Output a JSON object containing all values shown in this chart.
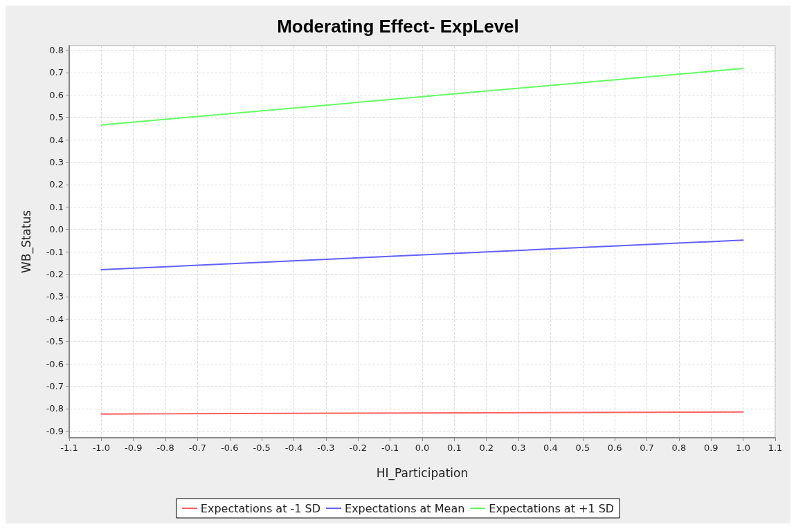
{
  "chart_data": {
    "type": "line",
    "title": "Moderating Effect- ExpLevel",
    "xlabel": "HI_Participation",
    "ylabel": "WB_Status",
    "x": [
      -1.0,
      1.0
    ],
    "series": [
      {
        "name": "Expectations at -1 SD",
        "color": "#ff6060",
        "values": [
          -0.824,
          -0.815
        ]
      },
      {
        "name": "Expectations at Mean",
        "color": "#6060ff",
        "values": [
          -0.18,
          -0.048
        ]
      },
      {
        "name": "Expectations at +1 SD",
        "color": "#60ff60",
        "values": [
          0.466,
          0.718
        ]
      }
    ],
    "xlim": [
      -1.1,
      1.1
    ],
    "xticks": [
      -1.1,
      {
        "value": -1,
        "label": "-1.0"
      },
      -0.9,
      -0.8,
      -0.7,
      -0.6,
      -0.5,
      -0.4,
      -0.3,
      -0.2,
      -0.1,
      {
        "value": 0,
        "label": "0.0"
      },
      0.1,
      0.2,
      0.3,
      0.4,
      0.5,
      0.6,
      0.7,
      0.8,
      0.9,
      {
        "value": 1,
        "label": "1.0"
      },
      1.1
    ],
    "ylim": [
      -0.93,
      0.82
    ],
    "yticks": [
      -0.9,
      -0.8,
      -0.7,
      -0.6,
      -0.5,
      -0.4,
      -0.3,
      -0.2,
      -0.1,
      {
        "value": 0,
        "label": "0.0"
      },
      0.1,
      0.2,
      0.3,
      0.4,
      0.5,
      0.6,
      0.7,
      0.8
    ],
    "grid": true,
    "legend": "bottom",
    "marker": "none",
    "line_style": "solid"
  }
}
